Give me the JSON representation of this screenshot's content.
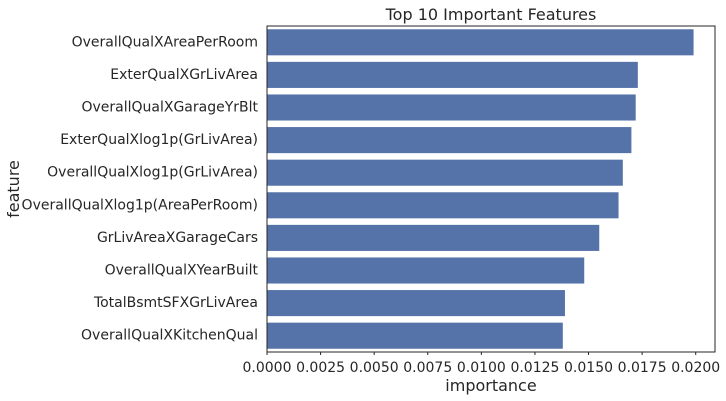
{
  "chart_data": {
    "type": "bar",
    "orientation": "horizontal",
    "title": "Top 10 Important Features",
    "xlabel": "importance",
    "ylabel": "feature",
    "categories": [
      "OverallQualXAreaPerRoom",
      "ExterQualXGrLivArea",
      "OverallQualXGarageYrBlt",
      "ExterQualXlog1p(GrLivArea)",
      "OverallQualXlog1p(GrLivArea)",
      "OverallQualXlog1p(AreaPerRoom)",
      "GrLivAreaXGarageCars",
      "OverallQualXYearBuilt",
      "TotalBsmtSFXGrLivArea",
      "OverallQualXKitchenQual"
    ],
    "values": [
      0.0199,
      0.0173,
      0.0172,
      0.017,
      0.0166,
      0.0164,
      0.0155,
      0.0148,
      0.0139,
      0.0138
    ],
    "xlim": [
      0,
      0.0209
    ],
    "xticks": [
      "0.0000",
      "0.0025",
      "0.0050",
      "0.0075",
      "0.0100",
      "0.0125",
      "0.0150",
      "0.0175",
      "0.0200"
    ],
    "grid": false,
    "bar_color": "#5573a8"
  }
}
